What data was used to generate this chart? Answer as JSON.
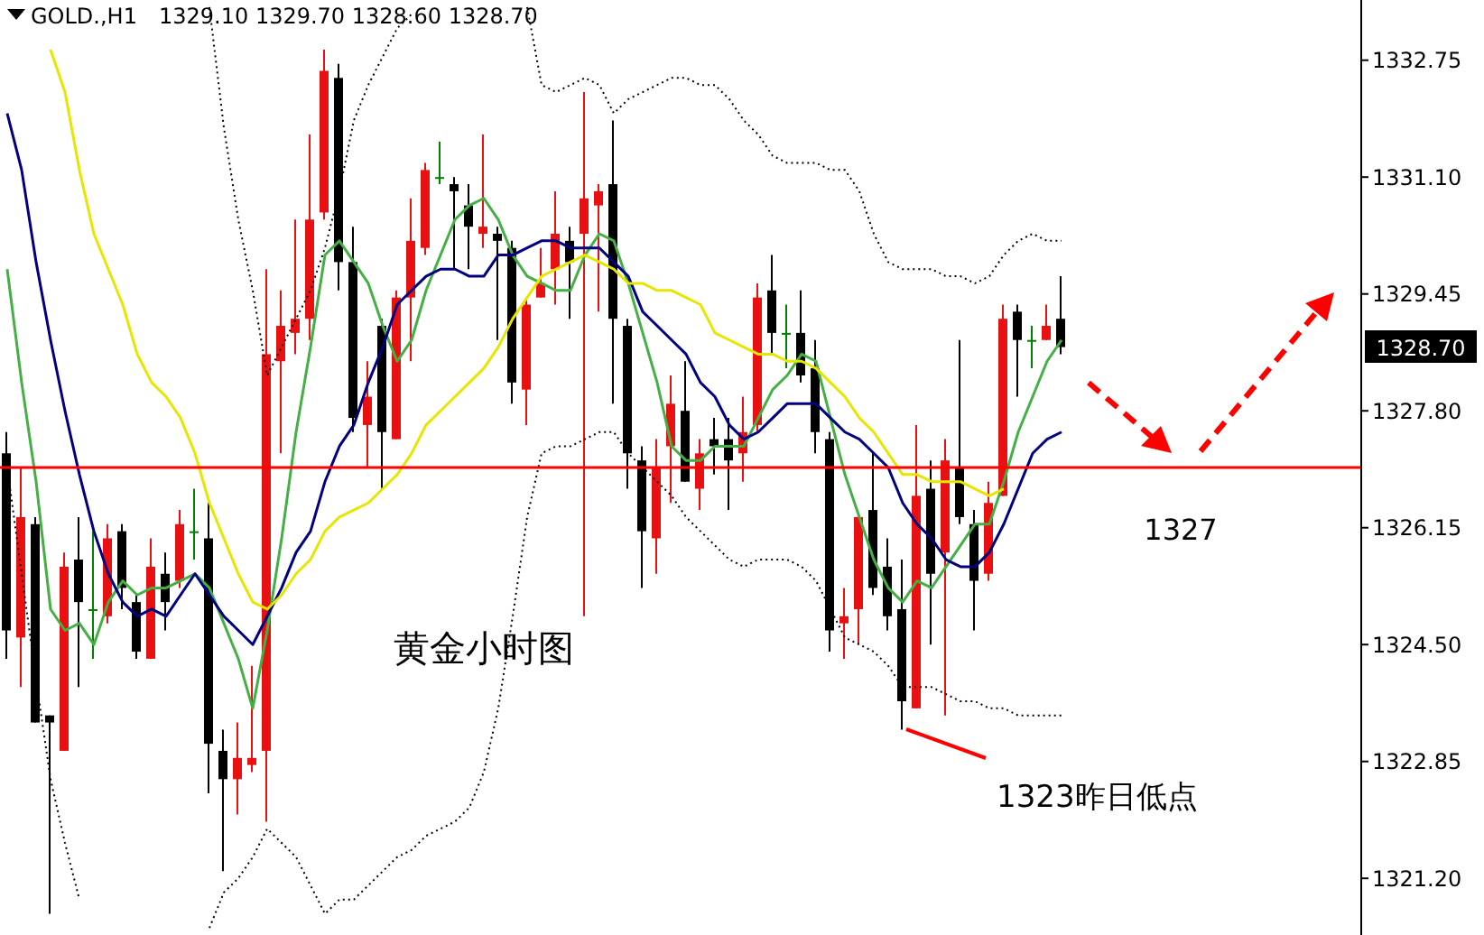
{
  "chart_data": {
    "type": "candlestick",
    "title": "GOLD.,H1",
    "subtitle": "1329.10 1329.70 1328.60 1328.70",
    "categories": [
      null,
      null,
      null,
      null,
      null,
      null,
      null,
      null,
      null,
      null,
      null,
      null,
      null,
      null,
      null,
      null,
      null,
      null,
      null,
      null,
      null,
      null,
      null,
      null,
      null,
      null,
      null,
      null,
      null,
      null,
      null,
      null,
      null,
      null,
      null,
      null,
      null,
      null,
      null,
      null,
      null,
      null,
      null,
      null,
      null,
      null,
      null,
      null,
      null,
      null,
      null,
      null,
      null,
      null,
      null,
      null,
      null,
      null,
      null,
      null,
      null,
      null,
      null,
      null,
      null,
      null,
      null,
      null,
      null,
      null,
      null,
      null,
      null,
      null
    ],
    "ohlc": [
      [
        1327.2,
        1327.5,
        1324.3,
        1324.7
      ],
      [
        1324.6,
        1327.0,
        1323.9,
        1326.3
      ],
      [
        1326.2,
        1326.3,
        1323.4,
        1323.4
      ],
      [
        1323.5,
        1323.5,
        1320.7,
        1323.4
      ],
      [
        1323.0,
        1325.8,
        1323.0,
        1325.6
      ],
      [
        1325.7,
        1326.3,
        1323.9,
        1325.1
      ],
      [
        1325.0,
        1326.1,
        1324.3,
        1325.0
      ],
      [
        1324.9,
        1326.2,
        1324.8,
        1326.0
      ],
      [
        1326.1,
        1326.2,
        1325.0,
        1325.3
      ],
      [
        1325.1,
        1325.2,
        1324.3,
        1324.4
      ],
      [
        1324.3,
        1326.0,
        1324.3,
        1325.6
      ],
      [
        1325.5,
        1325.8,
        1324.7,
        1325.1
      ],
      [
        1325.4,
        1326.4,
        1325.3,
        1326.2
      ],
      [
        1326.1,
        1326.7,
        1325.7,
        1326.1
      ],
      [
        1326.0,
        1326.5,
        1322.4,
        1323.1
      ],
      [
        1323.0,
        1323.3,
        1321.3,
        1322.6
      ],
      [
        1322.6,
        1323.4,
        1322.1,
        1322.9
      ],
      [
        1322.8,
        1324.2,
        1322.7,
        1322.9
      ],
      [
        1323.0,
        1329.8,
        1322.0,
        1328.6
      ],
      [
        1328.5,
        1329.5,
        1327.2,
        1329.0
      ],
      [
        1328.9,
        1330.5,
        1328.6,
        1329.1
      ],
      [
        1329.1,
        1331.7,
        1328.8,
        1330.5
      ],
      [
        1330.6,
        1332.9,
        1330.5,
        1332.6
      ],
      [
        1332.5,
        1332.7,
        1329.5,
        1329.9
      ],
      [
        1329.9,
        1330.4,
        1327.5,
        1327.7
      ],
      [
        1327.6,
        1328.5,
        1327.0,
        1328.0
      ],
      [
        1329.0,
        1329.1,
        1326.7,
        1327.5
      ],
      [
        1327.4,
        1329.5,
        1327.4,
        1329.4
      ],
      [
        1329.4,
        1330.8,
        1328.5,
        1330.2
      ],
      [
        1330.1,
        1331.3,
        1330.0,
        1331.2
      ],
      [
        1331.1,
        1331.6,
        1331.0,
        1331.1
      ],
      [
        1331.0,
        1331.1,
        1329.8,
        1330.9
      ],
      [
        1330.7,
        1331.0,
        1329.8,
        1330.4
      ],
      [
        1330.3,
        1331.7,
        1330.1,
        1330.4
      ],
      [
        1330.3,
        1330.4,
        1328.8,
        1330.2
      ],
      [
        1330.1,
        1330.2,
        1327.9,
        1328.2
      ],
      [
        1328.1,
        1329.4,
        1327.6,
        1329.3
      ],
      [
        1329.4,
        1330.1,
        1329.4,
        1329.6
      ],
      [
        1329.8,
        1330.9,
        1329.3,
        1330.3
      ],
      [
        1330.2,
        1330.4,
        1329.1,
        1329.9
      ],
      [
        1330.3,
        1332.3,
        1324.9,
        1330.8
      ],
      [
        1330.7,
        1331.0,
        1329.2,
        1330.9
      ],
      [
        1331.0,
        1331.9,
        1327.9,
        1329.1
      ],
      [
        1329.0,
        1329.1,
        1326.7,
        1327.2
      ],
      [
        1327.1,
        1327.3,
        1325.3,
        1326.1
      ],
      [
        1326.0,
        1327.4,
        1325.5,
        1327.0
      ],
      [
        1327.3,
        1328.3,
        1326.5,
        1327.9
      ],
      [
        1327.8,
        1328.5,
        1326.8,
        1326.8
      ],
      [
        1326.7,
        1327.4,
        1326.4,
        1327.2
      ],
      [
        1327.4,
        1327.7,
        1326.9,
        1327.3
      ],
      [
        1327.4,
        1327.7,
        1326.4,
        1327.1
      ],
      [
        1327.2,
        1328.0,
        1326.8,
        1327.5
      ],
      [
        1327.6,
        1329.6,
        1327.5,
        1329.4
      ],
      [
        1329.5,
        1330.0,
        1328.6,
        1328.9
      ],
      [
        1328.9,
        1329.3,
        1328.4,
        1328.9
      ],
      [
        1328.9,
        1329.5,
        1328.2,
        1328.3
      ],
      [
        1328.4,
        1328.8,
        1327.2,
        1327.5
      ],
      [
        1327.4,
        1327.5,
        1324.4,
        1324.7
      ],
      [
        1324.8,
        1325.3,
        1324.3,
        1324.9
      ],
      [
        1325.0,
        1326.3,
        1324.5,
        1326.3
      ],
      [
        1326.4,
        1327.2,
        1325.2,
        1325.3
      ],
      [
        1325.6,
        1326.0,
        1324.7,
        1324.9
      ],
      [
        1325.0,
        1325.7,
        1323.3,
        1323.7
      ],
      [
        1323.6,
        1327.6,
        1323.6,
        1326.6
      ],
      [
        1326.7,
        1327.1,
        1324.5,
        1325.5
      ],
      [
        1325.8,
        1327.4,
        1323.5,
        1327.1
      ],
      [
        1327.0,
        1328.8,
        1326.2,
        1326.3
      ],
      [
        1326.2,
        1326.4,
        1324.7,
        1325.4
      ],
      [
        1325.5,
        1326.8,
        1325.4,
        1326.5
      ],
      [
        1326.6,
        1329.3,
        1326.6,
        1329.1
      ],
      [
        1329.2,
        1329.3,
        1328.0,
        1328.8
      ],
      [
        1328.8,
        1329.0,
        1328.4,
        1328.8
      ],
      [
        1328.8,
        1329.3,
        1328.8,
        1329.0
      ],
      [
        1329.1,
        1329.7,
        1328.6,
        1328.7
      ]
    ],
    "colors": [
      "#000000",
      "#e81010",
      "#000000",
      "#000000",
      "#e81010",
      "#000000",
      "#008000",
      "#e81010",
      "#000000",
      "#000000",
      "#e81010",
      "#000000",
      "#e81010",
      "#008000",
      "#000000",
      "#000000",
      "#e81010",
      "#e81010",
      "#e81010",
      "#e81010",
      "#e81010",
      "#e81010",
      "#e81010",
      "#000000",
      "#000000",
      "#e81010",
      "#000000",
      "#e81010",
      "#e81010",
      "#e81010",
      "#008000",
      "#000000",
      "#000000",
      "#e81010",
      "#000000",
      "#000000",
      "#e81010",
      "#e81010",
      "#e81010",
      "#000000",
      "#e81010",
      "#e81010",
      "#000000",
      "#000000",
      "#000000",
      "#e81010",
      "#e81010",
      "#000000",
      "#e81010",
      "#000000",
      "#000000",
      "#e81010",
      "#e81010",
      "#000000",
      "#008000",
      "#000000",
      "#000000",
      "#000000",
      "#e81010",
      "#e81010",
      "#000000",
      "#000000",
      "#000000",
      "#e81010",
      "#000000",
      "#e81010",
      "#000000",
      "#000000",
      "#e81010",
      "#e81010",
      "#000000",
      "#008000",
      "#e81010",
      "#000000"
    ],
    "series": [
      {
        "type": "line",
        "color": "#44b044",
        "values": [
          1329.8,
          1328.2,
          1326.8,
          1325.0,
          1324.7,
          1324.8,
          1324.5,
          1325.1,
          1325.4,
          1325.2,
          1325.3,
          1325.3,
          1325.4,
          1325.5,
          1325.3,
          1324.8,
          1324.3,
          1323.6,
          1324.7,
          1326.0,
          1327.5,
          1328.7,
          1330.0,
          1330.2,
          1329.9,
          1329.6,
          1329.0,
          1328.5,
          1328.8,
          1329.5,
          1330.0,
          1330.5,
          1330.7,
          1330.8,
          1330.5,
          1330.0,
          1329.7,
          1329.6,
          1329.5,
          1329.5,
          1330.0,
          1330.3,
          1330.2,
          1329.6,
          1328.9,
          1328.2,
          1327.3,
          1327.1,
          1327.1,
          1327.3,
          1327.3,
          1327.3,
          1327.7,
          1328.1,
          1328.3,
          1328.6,
          1328.5,
          1327.7,
          1326.9,
          1326.3,
          1325.7,
          1325.3,
          1325.1,
          1325.4,
          1325.3,
          1325.6,
          1325.9,
          1326.2,
          1326.2,
          1326.8,
          1327.5,
          1328.0,
          1328.5,
          1328.8
        ]
      },
      {
        "type": "line",
        "color": "#000080",
        "values": [
          1332.0,
          1331.2,
          1329.9,
          1328.8,
          1327.8,
          1326.9,
          1326.1,
          1325.5,
          1325.1,
          1324.9,
          1325.0,
          1324.9,
          1325.2,
          1325.5,
          1325.2,
          1324.9,
          1324.7,
          1324.5,
          1324.9,
          1325.3,
          1325.8,
          1326.1,
          1326.8,
          1327.3,
          1327.6,
          1328.2,
          1328.7,
          1329.3,
          1329.5,
          1329.7,
          1329.8,
          1329.8,
          1329.7,
          1329.7,
          1330.0,
          1330.0,
          1330.1,
          1330.2,
          1330.2,
          1330.1,
          1330.1,
          1330.1,
          1329.9,
          1329.7,
          1329.2,
          1329.0,
          1328.8,
          1328.6,
          1328.2,
          1328.0,
          1327.6,
          1327.4,
          1327.5,
          1327.7,
          1327.9,
          1327.9,
          1327.9,
          1327.7,
          1327.5,
          1327.4,
          1327.2,
          1327.0,
          1326.5,
          1326.2,
          1326.0,
          1325.7,
          1325.6,
          1325.6,
          1325.8,
          1326.2,
          1326.7,
          1327.2,
          1327.4,
          1327.5
        ]
      },
      {
        "type": "line",
        "color": "#e6e600",
        "values": [
          null,
          null,
          null,
          1332.9,
          1332.3,
          1331.2,
          1330.3,
          1329.8,
          1329.3,
          1328.6,
          1328.2,
          1328.0,
          1327.7,
          1327.2,
          1326.5,
          1326.0,
          1325.5,
          1325.1,
          1325.0,
          1325.2,
          1325.5,
          1325.7,
          1326.1,
          1326.3,
          1326.4,
          1326.5,
          1326.7,
          1326.9,
          1327.2,
          1327.6,
          1327.8,
          1328.0,
          1328.2,
          1328.4,
          1328.7,
          1329.1,
          1329.4,
          1329.7,
          1329.8,
          1329.9,
          1330.0,
          1329.9,
          1329.8,
          1329.6,
          1329.6,
          1329.5,
          1329.5,
          1329.4,
          1329.3,
          1328.9,
          1328.8,
          1328.7,
          1328.6,
          1328.6,
          1328.5,
          1328.5,
          1328.4,
          1328.2,
          1328.0,
          1327.7,
          1327.5,
          1327.2,
          1326.9,
          1326.9,
          1326.8,
          1326.8,
          1326.8,
          1326.7,
          1326.6,
          1326.7,
          null,
          null,
          null,
          null
        ]
      },
      {
        "type": "line",
        "color": "#000000",
        "line_style": "dotted",
        "values": [
          null,
          null,
          null,
          null,
          null,
          null,
          null,
          null,
          null,
          null,
          null,
          null,
          null,
          null,
          1333.5,
          1331.8,
          1330.5,
          1329.5,
          1328.3,
          1328.7,
          1329.1,
          1329.5,
          1330.1,
          1330.9,
          1331.9,
          1332.4,
          1332.8,
          1333.2,
          1333.4,
          null,
          null,
          null,
          null,
          null,
          null,
          null,
          1333.5,
          1332.4,
          1332.3,
          1332.4,
          1332.5,
          1332.4,
          1332.0,
          1332.2,
          1332.3,
          1332.4,
          1332.5,
          1332.5,
          1332.4,
          1332.4,
          1332.2,
          1331.9,
          1331.7,
          1331.4,
          1331.3,
          1331.3,
          1331.3,
          1331.2,
          1331.2,
          1330.9,
          1330.3,
          1329.9,
          1329.8,
          1329.8,
          1329.8,
          1329.7,
          1329.7,
          1329.6,
          1329.7,
          1330.0,
          1330.2,
          1330.3,
          1330.2,
          1330.2
        ]
      },
      {
        "type": "line",
        "color": "#000000",
        "line_style": "dotted",
        "values": [
          1327.0,
          1325.5,
          1324.0,
          1322.6,
          1321.7,
          1320.9,
          null,
          null,
          null,
          null,
          null,
          null,
          null,
          null,
          1320.5,
          1321.0,
          1321.2,
          1321.5,
          1321.9,
          1321.7,
          1321.5,
          1321.1,
          1320.7,
          1320.9,
          1320.9,
          1321.1,
          1321.3,
          1321.5,
          1321.6,
          1321.8,
          1321.9,
          1322.0,
          1322.2,
          1322.7,
          1323.6,
          1324.9,
          1326.3,
          1327.2,
          1327.3,
          1327.3,
          1327.4,
          1327.5,
          1327.5,
          1327.2,
          1327.0,
          1326.8,
          1326.6,
          1326.3,
          1326.1,
          1325.9,
          1325.7,
          1325.6,
          1325.7,
          1325.7,
          1325.7,
          1325.6,
          1325.4,
          1325.0,
          1324.6,
          1324.5,
          1324.4,
          1324.2,
          1323.9,
          1323.9,
          1323.9,
          1323.8,
          1323.7,
          1323.7,
          1323.6,
          1323.6,
          1323.5,
          1323.5,
          1323.5,
          1323.5
        ]
      }
    ],
    "ylim": [
      1320.4,
      1333.6
    ],
    "yticks": [
      1332.75,
      {
        "value": 1331.1,
        "label": "1331.10"
      },
      1329.45,
      {
        "value": 1327.8,
        "label": "1327.80"
      },
      1326.15,
      {
        "value": 1324.5,
        "label": "1324.50"
      },
      1322.85,
      {
        "value": 1321.2,
        "label": "1321.20"
      }
    ],
    "tick_labels": "y",
    "ref_lines": [
      {
        "axis": "y",
        "value": 1327,
        "label": "1327",
        "color": "#ff0000"
      }
    ],
    "annotations": [
      "黄金小时图",
      "1323昨日低点",
      "1328.70"
    ]
  }
}
